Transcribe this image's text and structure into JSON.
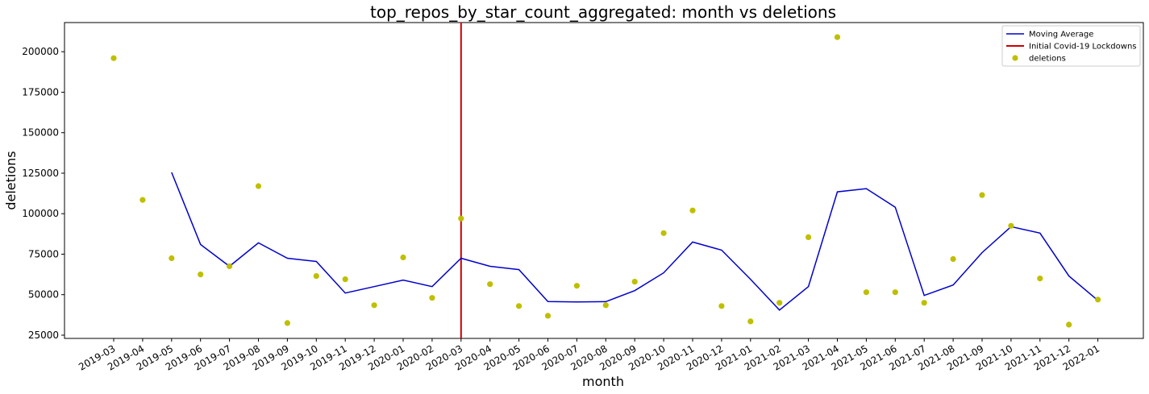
{
  "chart_data": {
    "type": "line",
    "title": "top_repos_by_star_count_aggregated: month vs deletions",
    "xlabel": "month",
    "ylabel": "deletions",
    "ylim": [
      23000,
      218000
    ],
    "yticks": [
      25000,
      50000,
      75000,
      100000,
      125000,
      150000,
      175000,
      200000
    ],
    "categories": [
      "2019-03",
      "2019-04",
      "2019-05",
      "2019-06",
      "2019-07",
      "2019-08",
      "2019-09",
      "2019-10",
      "2019-11",
      "2019-12",
      "2020-01",
      "2020-02",
      "2020-03",
      "2020-04",
      "2020-05",
      "2020-06",
      "2020-07",
      "2020-08",
      "2020-09",
      "2020-10",
      "2020-11",
      "2020-12",
      "2021-01",
      "2021-02",
      "2021-03",
      "2021-04",
      "2021-05",
      "2021-06",
      "2021-07",
      "2021-08",
      "2021-09",
      "2021-10",
      "2021-11",
      "2021-12",
      "2022-01"
    ],
    "series": [
      {
        "name": "Moving Average",
        "kind": "line",
        "color": "#0000cc",
        "values": [
          null,
          null,
          125500,
          81000,
          67500,
          82000,
          72500,
          70500,
          51000,
          55000,
          59000,
          55000,
          72500,
          67500,
          65500,
          45800,
          45500,
          45700,
          52500,
          63500,
          82500,
          77500,
          59500,
          40500,
          55000,
          113500,
          115500,
          104000,
          49500,
          56000,
          76000,
          92000,
          88000,
          61500,
          46500
        ]
      },
      {
        "name": "deletions",
        "kind": "scatter",
        "color": "#bfbf00",
        "values": [
          196000,
          108500,
          72500,
          62500,
          67500,
          117000,
          32500,
          61500,
          59500,
          43500,
          73000,
          48000,
          97000,
          56500,
          43000,
          37000,
          55500,
          43500,
          58000,
          88000,
          102000,
          43000,
          33500,
          45000,
          85500,
          209000,
          51500,
          51500,
          45000,
          72000,
          111500,
          92500,
          60000,
          31500,
          47000
        ]
      }
    ],
    "vline": {
      "name": "Initial Covid-19 Lockdowns",
      "x": "2020-03",
      "color": "#cc0000"
    },
    "legend": {
      "placement": "top-right",
      "entries": [
        "Moving Average",
        "Initial Covid-19 Lockdowns",
        "deletions"
      ]
    },
    "grid": false
  }
}
